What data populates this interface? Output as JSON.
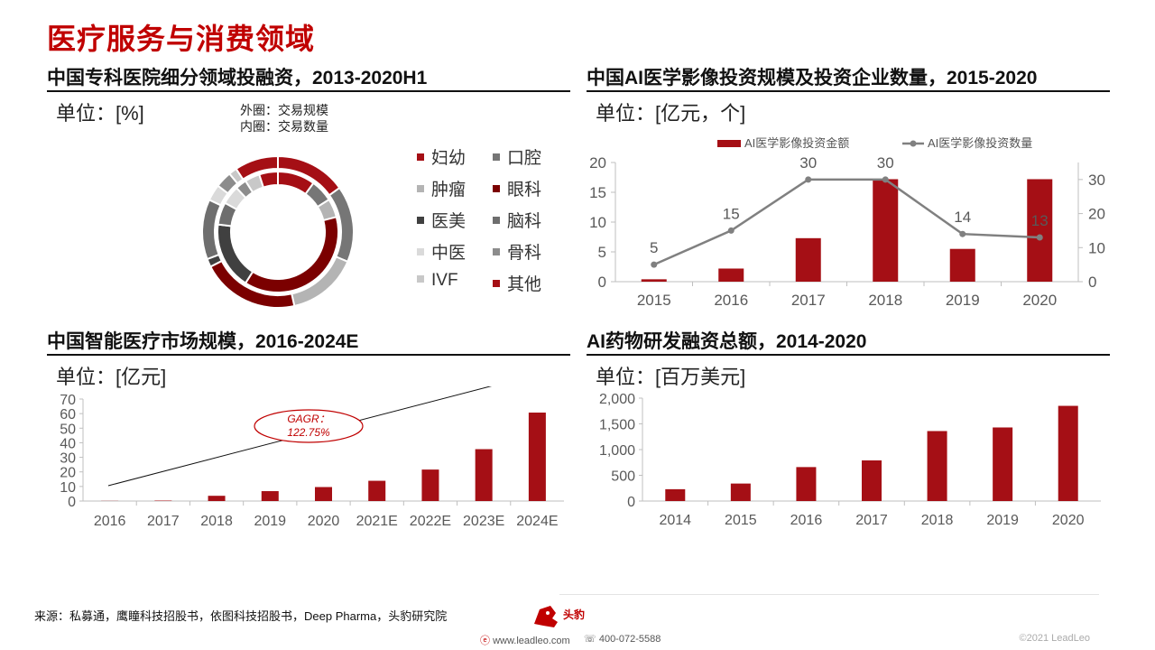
{
  "page": {
    "title": "医疗服务与消费领域",
    "source": "来源：私募通，鹰瞳科技招股书，依图科技招股书，Deep Pharma，头豹研究院",
    "website": "www.leadleo.com",
    "phone": "400-072-5588",
    "copyright": "©2021 LeadLeo",
    "logo_text": "头豹"
  },
  "panels": {
    "donut": {
      "title": "中国专科医院细分领域投融资，2013-2020H1",
      "unit": "单位：[%]",
      "outer_note": "外圈：交易规模",
      "inner_note": "内圈：交易数量"
    },
    "ai_imaging": {
      "title": "中国AI医学影像投资规模及投资企业数量，2015-2020",
      "unit": "单位：[亿元，个]"
    },
    "smart_medical": {
      "title": "中国智能医疗市场规模，2016-2024E",
      "unit": "单位：[亿元]"
    },
    "ai_drug": {
      "title": "AI药物研发融资总额，2014-2020",
      "unit": "单位：[百万美元]"
    }
  },
  "colors": {
    "dark_red": "#a50f15",
    "brand_red": "#c00000",
    "gray_line": "#7f7f7f"
  },
  "chart_data": [
    {
      "id": "donut",
      "type": "pie",
      "title": "中国专科医院细分领域投融资，2013-2020H1",
      "legend": [
        {
          "name": "妇幼",
          "color": "#a50f15"
        },
        {
          "name": "口腔",
          "color": "#767676"
        },
        {
          "name": "肿瘤",
          "color": "#b4b4b4"
        },
        {
          "name": "眼科",
          "color": "#7b0000"
        },
        {
          "name": "医美",
          "color": "#404040"
        },
        {
          "name": "脑科",
          "color": "#6e6e6e"
        },
        {
          "name": "中医",
          "color": "#dadada"
        },
        {
          "name": "骨科",
          "color": "#8c8c8c"
        },
        {
          "name": "IVF",
          "color": "#c8c8c8"
        },
        {
          "name": "其他",
          "color": "#a50f15"
        }
      ],
      "outer_ring_label": "交易规模",
      "inner_ring_label": "交易数量",
      "outer_values": [
        13,
        14,
        13,
        18,
        1.5,
        11,
        3,
        3,
        1.5,
        8
      ],
      "inner_values": [
        10,
        6,
        5,
        38,
        18,
        6,
        5,
        3,
        4,
        5
      ]
    },
    {
      "id": "ai_imaging",
      "type": "bar",
      "categories": [
        "2015",
        "2016",
        "2017",
        "2018",
        "2019",
        "2020"
      ],
      "series": [
        {
          "name": "AI医学影像投资金额",
          "type": "bar",
          "axis": "left",
          "values": [
            0.4,
            2.2,
            7.3,
            17.2,
            5.5,
            17.2
          ]
        },
        {
          "name": "AI医学影像投资数量",
          "type": "line",
          "axis": "right",
          "values": [
            5,
            15,
            30,
            30,
            14,
            13
          ],
          "labels": [
            "5",
            "15",
            "30",
            "30",
            "14",
            "13"
          ]
        }
      ],
      "ylim": [
        0,
        20
      ],
      "y_ticks": [
        0,
        5,
        10,
        15,
        20
      ],
      "y2lim": [
        0,
        35
      ],
      "y2_ticks": [
        0,
        10,
        20,
        30
      ]
    },
    {
      "id": "smart_medical",
      "type": "bar",
      "categories": [
        "2016",
        "2017",
        "2018",
        "2019",
        "2020",
        "2021E",
        "2022E",
        "2023E",
        "2024E"
      ],
      "values": [
        0.1,
        0.3,
        3.6,
        6.8,
        9.6,
        13.9,
        21.6,
        35.6,
        60.7
      ],
      "ylim": [
        0,
        70
      ],
      "y_ticks": [
        0,
        10,
        20,
        30,
        40,
        50,
        60,
        70
      ],
      "annotation": "GAGR：122.75%"
    },
    {
      "id": "ai_drug",
      "type": "bar",
      "categories": [
        "2014",
        "2015",
        "2016",
        "2017",
        "2018",
        "2019",
        "2020"
      ],
      "values": [
        230,
        340,
        660,
        790,
        1360,
        1430,
        1850
      ],
      "ylim": [
        0,
        2000
      ],
      "y_ticks": [
        "0",
        "500",
        "1,000",
        "1,500",
        "2,000"
      ]
    }
  ]
}
